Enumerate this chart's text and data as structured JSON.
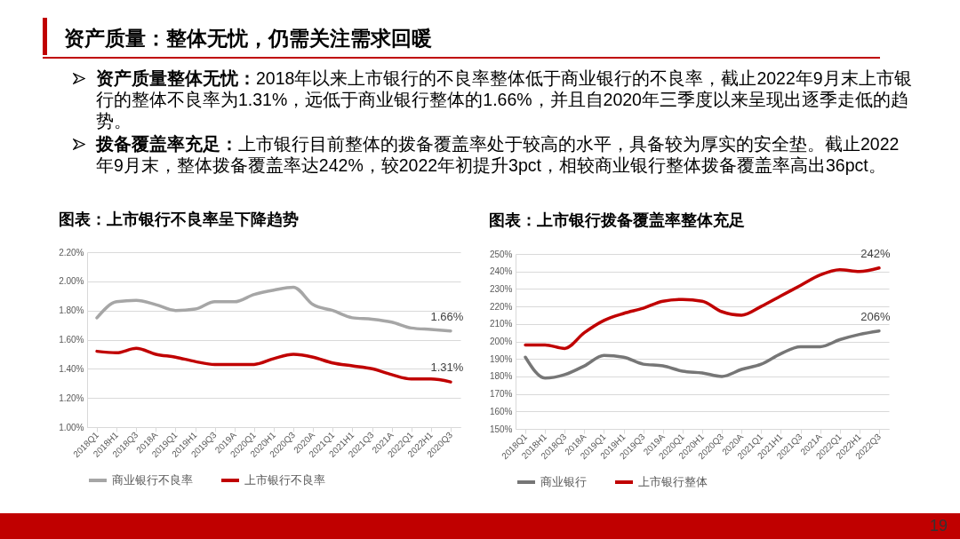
{
  "chart_data": [
    {
      "type": "other",
      "title": "资产质量：整体无忧，仍需关注需求回暖",
      "annotations": [
        "资产质量整体无忧：2018年以来上市银行的不良率整体低于商业银行的不良率，截止2022年9月末上市银行的整体不良率为1.31%，远低于商业银行整体的1.66%，并且自2020年三季度以来呈现出逐季走低的趋势。",
        "拨备覆盖率充足：上市银行目前整体的拨备覆盖率处于较高的水平，具备较为厚实的安全垫。截止2022年9月末，整体拨备覆盖率达242%，较2022年初提升3pct，相较商业银行整体拨备覆盖率高出36pct。",
        "19"
      ]
    },
    {
      "type": "line",
      "title": "图表：上市银行不良率呈下降趋势",
      "categories": [
        "2018Q1",
        "2018H1",
        "2018Q3",
        "2018A",
        "2019Q1",
        "2019H1",
        "2019Q3",
        "2019A",
        "2020Q1",
        "2020H1",
        "2020Q3",
        "2020A",
        "2021Q1",
        "2021H1",
        "2021Q3",
        "2021A",
        "2022Q1",
        "2022H1",
        "2020Q3"
      ],
      "series": [
        {
          "name": "商业银行不良率",
          "color": "#a6a6a6",
          "values": [
            1.75,
            1.86,
            1.87,
            1.84,
            1.8,
            1.81,
            1.86,
            1.86,
            1.91,
            1.94,
            1.96,
            1.84,
            1.8,
            1.75,
            1.74,
            1.72,
            1.68,
            1.67,
            1.66
          ],
          "value_labels": [
            null,
            null,
            null,
            null,
            null,
            null,
            null,
            null,
            null,
            null,
            null,
            null,
            null,
            null,
            null,
            null,
            null,
            null,
            "1.66%"
          ]
        },
        {
          "name": "上市银行不良率",
          "color": "#c00000",
          "values": [
            1.52,
            1.51,
            1.54,
            1.5,
            1.48,
            1.45,
            1.43,
            1.43,
            1.43,
            1.47,
            1.5,
            1.48,
            1.44,
            1.42,
            1.4,
            1.36,
            1.33,
            1.33,
            1.31
          ],
          "value_labels": [
            null,
            null,
            null,
            null,
            null,
            null,
            null,
            null,
            null,
            null,
            null,
            null,
            null,
            null,
            null,
            null,
            null,
            null,
            "1.31%"
          ]
        }
      ],
      "ylim": [
        1.0,
        2.2
      ],
      "yticks": [
        {
          "value": 1.0,
          "label": "1.00%"
        },
        {
          "value": 1.2,
          "label": "1.20%"
        },
        {
          "value": 1.4,
          "label": "1.40%"
        },
        {
          "value": 1.6,
          "label": "1.60%"
        },
        {
          "value": 1.8,
          "label": "1.80%"
        },
        {
          "value": 2.0,
          "label": "2.00%"
        },
        {
          "value": 2.2,
          "label": "2.20%"
        }
      ],
      "grid": "y",
      "legend": "bottom"
    },
    {
      "type": "line",
      "title": "图表：上市银行拨备覆盖率整体充足",
      "categories": [
        "2018Q1",
        "2018H1",
        "2018Q3",
        "2018A",
        "2019Q1",
        "2019H1",
        "2019Q3",
        "2019A",
        "2020Q1",
        "2020H1",
        "2020Q3",
        "2020A",
        "2021Q1",
        "2021H1",
        "2021Q3",
        "2021A",
        "2022Q1",
        "2022H1",
        "2022Q3"
      ],
      "series": [
        {
          "name": "商业银行",
          "color": "#767676",
          "values": [
            191,
            179,
            181,
            186,
            192,
            191,
            187,
            186,
            183,
            182,
            180,
            184,
            187,
            193,
            197,
            197,
            201,
            204,
            206
          ],
          "value_labels": [
            null,
            null,
            null,
            null,
            null,
            null,
            null,
            null,
            null,
            null,
            null,
            null,
            null,
            null,
            null,
            null,
            null,
            null,
            "206%"
          ]
        },
        {
          "name": "上市银行整体",
          "color": "#c00000",
          "values": [
            198,
            198,
            196,
            205,
            212,
            216,
            219,
            223,
            224,
            223,
            217,
            215,
            220,
            226,
            232,
            238,
            241,
            240,
            242
          ],
          "value_labels": [
            null,
            null,
            null,
            null,
            null,
            null,
            null,
            null,
            null,
            null,
            null,
            null,
            null,
            null,
            null,
            null,
            null,
            null,
            "242%"
          ]
        }
      ],
      "ylim": [
        150,
        250
      ],
      "yticks": [
        {
          "value": 150,
          "label": "150%"
        },
        {
          "value": 160,
          "label": "160%"
        },
        {
          "value": 170,
          "label": "170%"
        },
        {
          "value": 180,
          "label": "180%"
        },
        {
          "value": 190,
          "label": "190%"
        },
        {
          "value": 200,
          "label": "200%"
        },
        {
          "value": 210,
          "label": "210%"
        },
        {
          "value": 220,
          "label": "220%"
        },
        {
          "value": 230,
          "label": "230%"
        },
        {
          "value": 240,
          "label": "240%"
        },
        {
          "value": 250,
          "label": "250%"
        }
      ],
      "grid": "y",
      "legend": "bottom"
    }
  ]
}
